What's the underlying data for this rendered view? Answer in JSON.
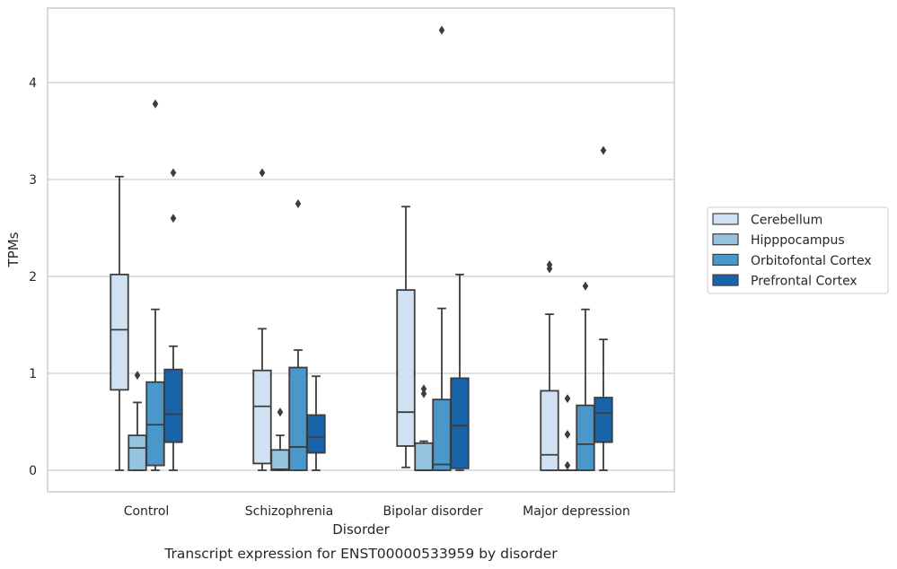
{
  "chart_data": {
    "type": "box",
    "xlabel": "Disorder",
    "ylabel": "TPMs",
    "caption": "Transcript expression for ENST00000533959 by disorder",
    "ylim": [
      -0.22,
      4.78
    ],
    "yticks": [
      0,
      1,
      2,
      3,
      4
    ],
    "grid": "horizontal",
    "legend_position": "right",
    "categories": [
      "Control",
      "Schizophrenia",
      "Bipolar disorder",
      "Major depression"
    ],
    "series": [
      {
        "name": "Cerebellum",
        "color": "#d0e1f2",
        "boxes": [
          {
            "whisker_low": 0,
            "q1": 0.83,
            "median": 1.45,
            "q3": 2.02,
            "whisker_high": 3.03,
            "outliers": []
          },
          {
            "whisker_low": 0,
            "q1": 0.07,
            "median": 0.66,
            "q3": 1.03,
            "whisker_high": 1.46,
            "outliers": [
              3.07
            ]
          },
          {
            "whisker_low": 0.03,
            "q1": 0.25,
            "median": 0.6,
            "q3": 1.86,
            "whisker_high": 2.72,
            "outliers": []
          },
          {
            "whisker_low": 0,
            "q1": 0,
            "median": 0.16,
            "q3": 0.82,
            "whisker_high": 1.61,
            "outliers": [
              2.08,
              2.12
            ]
          }
        ]
      },
      {
        "name": "Hipppocampus",
        "color": "#94c4df",
        "boxes": [
          {
            "whisker_low": 0,
            "q1": 0,
            "median": 0.23,
            "q3": 0.36,
            "whisker_high": 0.7,
            "outliers": [
              0.98
            ]
          },
          {
            "whisker_low": 0,
            "q1": 0,
            "median": 0.01,
            "q3": 0.21,
            "whisker_high": 0.36,
            "outliers": [
              0.6
            ]
          },
          {
            "whisker_low": 0,
            "q1": 0,
            "median": 0,
            "q3": 0.28,
            "whisker_high": 0.3,
            "outliers": [
              0.79,
              0.84
            ]
          },
          {
            "whisker_low": 0,
            "q1": 0,
            "median": 0,
            "q3": 0,
            "whisker_high": 0,
            "outliers": [
              0.05,
              0.37,
              0.74
            ]
          }
        ]
      },
      {
        "name": "Orbitofontal Cortex",
        "color": "#4a98c9",
        "boxes": [
          {
            "whisker_low": 0,
            "q1": 0.05,
            "median": 0.47,
            "q3": 0.91,
            "whisker_high": 1.66,
            "outliers": [
              3.78
            ]
          },
          {
            "whisker_low": 0,
            "q1": 0,
            "median": 0.24,
            "q3": 1.06,
            "whisker_high": 1.24,
            "outliers": [
              2.75
            ]
          },
          {
            "whisker_low": 0,
            "q1": 0,
            "median": 0.06,
            "q3": 0.73,
            "whisker_high": 1.67,
            "outliers": [
              4.54
            ]
          },
          {
            "whisker_low": 0,
            "q1": 0,
            "median": 0.27,
            "q3": 0.67,
            "whisker_high": 1.66,
            "outliers": [
              1.9
            ]
          }
        ]
      },
      {
        "name": "Prefrontal Cortex",
        "color": "#1764ab",
        "boxes": [
          {
            "whisker_low": 0,
            "q1": 0.29,
            "median": 0.58,
            "q3": 1.04,
            "whisker_high": 1.28,
            "outliers": [
              2.6,
              3.07
            ]
          },
          {
            "whisker_low": 0,
            "q1": 0.18,
            "median": 0.34,
            "q3": 0.57,
            "whisker_high": 0.97,
            "outliers": []
          },
          {
            "whisker_low": 0,
            "q1": 0.02,
            "median": 0.46,
            "q3": 0.95,
            "whisker_high": 2.02,
            "outliers": []
          },
          {
            "whisker_low": 0,
            "q1": 0.29,
            "median": 0.59,
            "q3": 0.75,
            "whisker_high": 1.35,
            "outliers": [
              3.3
            ]
          }
        ]
      }
    ]
  }
}
